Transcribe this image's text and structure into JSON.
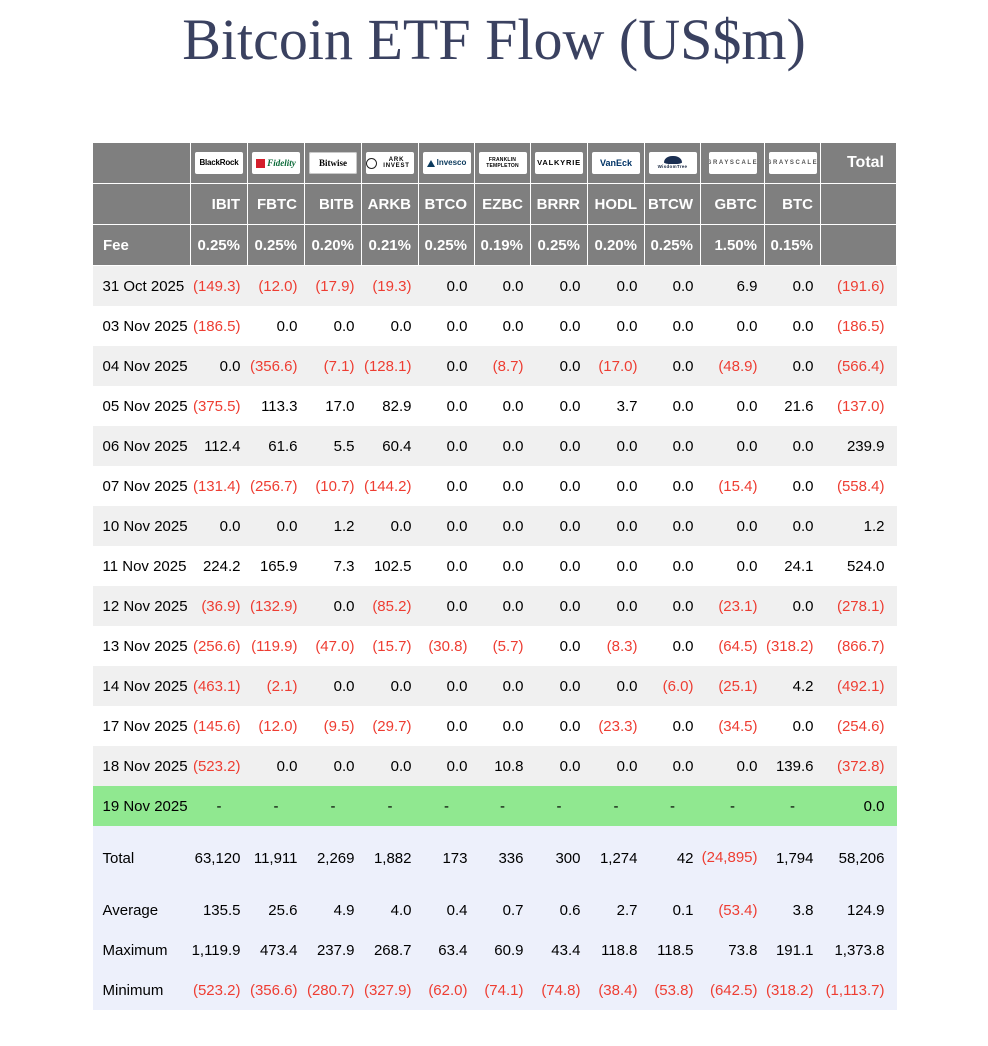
{
  "title": "Bitcoin ETF Flow (US$m)",
  "chart_data": {
    "type": "table",
    "title": "Bitcoin ETF Flow (US$m)",
    "fee_label": "Fee",
    "total_label": "Total",
    "columns": [
      {
        "ticker": "IBIT",
        "fee": "0.25%",
        "brand": "BlackRock",
        "logo": "blackrock"
      },
      {
        "ticker": "FBTC",
        "fee": "0.25%",
        "brand": "Fidelity",
        "logo": "fidelity"
      },
      {
        "ticker": "BITB",
        "fee": "0.20%",
        "brand": "Bitwise",
        "logo": "bitwise"
      },
      {
        "ticker": "ARKB",
        "fee": "0.21%",
        "brand": "ARK Invest",
        "logo": "ark"
      },
      {
        "ticker": "BTCO",
        "fee": "0.25%",
        "brand": "Invesco",
        "logo": "invesco"
      },
      {
        "ticker": "EZBC",
        "fee": "0.19%",
        "brand": "Franklin Templeton",
        "logo": "franklin"
      },
      {
        "ticker": "BRRR",
        "fee": "0.25%",
        "brand": "Valkyrie",
        "logo": "valkyrie"
      },
      {
        "ticker": "HODL",
        "fee": "0.20%",
        "brand": "VanEck",
        "logo": "vaneck"
      },
      {
        "ticker": "BTCW",
        "fee": "0.25%",
        "brand": "WisdomTree",
        "logo": "wisdomtree"
      },
      {
        "ticker": "GBTC",
        "fee": "1.50%",
        "brand": "Grayscale",
        "logo": "grayscale"
      },
      {
        "ticker": "BTC",
        "fee": "0.15%",
        "brand": "Grayscale",
        "logo": "grayscale"
      }
    ],
    "rows": [
      {
        "date": "31 Oct 2025",
        "values": [
          "(149.3)",
          "(12.0)",
          "(17.9)",
          "(19.3)",
          "0.0",
          "0.0",
          "0.0",
          "0.0",
          "0.0",
          "6.9",
          "0.0"
        ],
        "total": "(191.6)"
      },
      {
        "date": "03 Nov 2025",
        "values": [
          "(186.5)",
          "0.0",
          "0.0",
          "0.0",
          "0.0",
          "0.0",
          "0.0",
          "0.0",
          "0.0",
          "0.0",
          "0.0"
        ],
        "total": "(186.5)"
      },
      {
        "date": "04 Nov 2025",
        "values": [
          "0.0",
          "(356.6)",
          "(7.1)",
          "(128.1)",
          "0.0",
          "(8.7)",
          "0.0",
          "(17.0)",
          "0.0",
          "(48.9)",
          "0.0"
        ],
        "total": "(566.4)"
      },
      {
        "date": "05 Nov 2025",
        "values": [
          "(375.5)",
          "113.3",
          "17.0",
          "82.9",
          "0.0",
          "0.0",
          "0.0",
          "3.7",
          "0.0",
          "0.0",
          "21.6"
        ],
        "total": "(137.0)"
      },
      {
        "date": "06 Nov 2025",
        "values": [
          "112.4",
          "61.6",
          "5.5",
          "60.4",
          "0.0",
          "0.0",
          "0.0",
          "0.0",
          "0.0",
          "0.0",
          "0.0"
        ],
        "total": "239.9"
      },
      {
        "date": "07 Nov 2025",
        "values": [
          "(131.4)",
          "(256.7)",
          "(10.7)",
          "(144.2)",
          "0.0",
          "0.0",
          "0.0",
          "0.0",
          "0.0",
          "(15.4)",
          "0.0"
        ],
        "total": "(558.4)"
      },
      {
        "date": "10 Nov 2025",
        "values": [
          "0.0",
          "0.0",
          "1.2",
          "0.0",
          "0.0",
          "0.0",
          "0.0",
          "0.0",
          "0.0",
          "0.0",
          "0.0"
        ],
        "total": "1.2"
      },
      {
        "date": "11 Nov 2025",
        "values": [
          "224.2",
          "165.9",
          "7.3",
          "102.5",
          "0.0",
          "0.0",
          "0.0",
          "0.0",
          "0.0",
          "0.0",
          "24.1"
        ],
        "total": "524.0"
      },
      {
        "date": "12 Nov 2025",
        "values": [
          "(36.9)",
          "(132.9)",
          "0.0",
          "(85.2)",
          "0.0",
          "0.0",
          "0.0",
          "0.0",
          "0.0",
          "(23.1)",
          "0.0"
        ],
        "total": "(278.1)"
      },
      {
        "date": "13 Nov 2025",
        "values": [
          "(256.6)",
          "(119.9)",
          "(47.0)",
          "(15.7)",
          "(30.8)",
          "(5.7)",
          "0.0",
          "(8.3)",
          "0.0",
          "(64.5)",
          "(318.2)"
        ],
        "total": "(866.7)"
      },
      {
        "date": "14 Nov 2025",
        "values": [
          "(463.1)",
          "(2.1)",
          "0.0",
          "0.0",
          "0.0",
          "0.0",
          "0.0",
          "0.0",
          "(6.0)",
          "(25.1)",
          "4.2"
        ],
        "total": "(492.1)"
      },
      {
        "date": "17 Nov 2025",
        "values": [
          "(145.6)",
          "(12.0)",
          "(9.5)",
          "(29.7)",
          "0.0",
          "0.0",
          "0.0",
          "(23.3)",
          "0.0",
          "(34.5)",
          "0.0"
        ],
        "total": "(254.6)"
      },
      {
        "date": "18 Nov 2025",
        "values": [
          "(523.2)",
          "0.0",
          "0.0",
          "0.0",
          "0.0",
          "10.8",
          "0.0",
          "0.0",
          "0.0",
          "0.0",
          "139.6"
        ],
        "total": "(372.8)"
      },
      {
        "date": "19 Nov 2025",
        "values": [
          "-",
          "-",
          "-",
          "-",
          "-",
          "-",
          "-",
          "-",
          "-",
          "-",
          "-"
        ],
        "total": "0.0",
        "highlight": true
      }
    ],
    "summary_rows": [
      {
        "label": "Total",
        "values": [
          "63,120",
          "11,911",
          "2,269",
          "1,882",
          "173",
          "336",
          "300",
          "1,274",
          "42",
          "(24,895)",
          "1,794"
        ],
        "total": "58,206"
      },
      {
        "label": "Average",
        "values": [
          "135.5",
          "25.6",
          "4.9",
          "4.0",
          "0.4",
          "0.7",
          "0.6",
          "2.7",
          "0.1",
          "(53.4)",
          "3.8"
        ],
        "total": "124.9"
      },
      {
        "label": "Maximum",
        "values": [
          "1,119.9",
          "473.4",
          "237.9",
          "268.7",
          "63.4",
          "60.9",
          "43.4",
          "118.8",
          "118.5",
          "73.8",
          "191.1"
        ],
        "total": "1,373.8"
      },
      {
        "label": "Minimum",
        "values": [
          "(523.2)",
          "(356.6)",
          "(280.7)",
          "(327.9)",
          "(62.0)",
          "(74.1)",
          "(74.8)",
          "(38.4)",
          "(53.8)",
          "(642.5)",
          "(318.2)"
        ],
        "total": "(1,113.7)"
      }
    ]
  },
  "colors": {
    "negative": "#ee3d32",
    "header_bg": "#7f7f7f",
    "header_text": "#ffffff",
    "alt_row_bg": "#f0f0f0",
    "highlight_row_bg": "#90e890",
    "summary_bg": "#edf0fb",
    "title_color": "#3a4160"
  }
}
